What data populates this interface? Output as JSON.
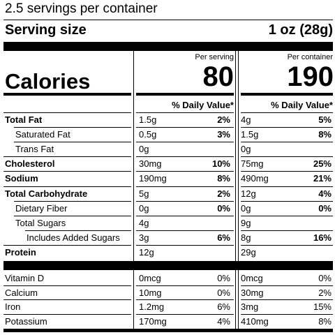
{
  "servings_per_container": "2.5 servings per container",
  "serving_size": {
    "label": "Serving size",
    "value": "1 oz (28g)"
  },
  "columns": {
    "per_serving": "Per serving",
    "per_container": "Per container"
  },
  "calories": {
    "label": "Calories",
    "per_serving": "80",
    "per_container": "190"
  },
  "daily_value_header": "% Daily Value*",
  "nutrients": [
    {
      "name": "Total Fat",
      "bold": true,
      "indent": 0,
      "serving_amount": "1.5g",
      "serving_dv": "2%",
      "container_amount": "4g",
      "container_dv": "5%"
    },
    {
      "name": "Saturated Fat",
      "bold": false,
      "indent": 1,
      "serving_amount": "0.5g",
      "serving_dv": "3%",
      "container_amount": "1.5g",
      "container_dv": "8%"
    },
    {
      "name": "Trans Fat",
      "bold": false,
      "indent": 1,
      "serving_amount": "0g",
      "serving_dv": "",
      "container_amount": "0g",
      "container_dv": ""
    },
    {
      "name": "Cholesterol",
      "bold": true,
      "indent": 0,
      "serving_amount": "30mg",
      "serving_dv": "10%",
      "container_amount": "75mg",
      "container_dv": "25%"
    },
    {
      "name": "Sodium",
      "bold": true,
      "indent": 0,
      "serving_amount": "190mg",
      "serving_dv": "8%",
      "container_amount": "490mg",
      "container_dv": "21%"
    },
    {
      "name": "Total Carbohydrate",
      "bold": true,
      "indent": 0,
      "serving_amount": "5g",
      "serving_dv": "2%",
      "container_amount": "12g",
      "container_dv": "4%"
    },
    {
      "name": "Dietary Fiber",
      "bold": false,
      "indent": 1,
      "serving_amount": "0g",
      "serving_dv": "0%",
      "container_amount": "0g",
      "container_dv": "0%"
    },
    {
      "name": "Total Sugars",
      "bold": false,
      "indent": 1,
      "serving_amount": "4g",
      "serving_dv": "",
      "container_amount": "9g",
      "container_dv": ""
    },
    {
      "name": "Includes Added Sugars",
      "bold": false,
      "indent": 2,
      "serving_amount": "3g",
      "serving_dv": "6%",
      "container_amount": "8g",
      "container_dv": "16%"
    },
    {
      "name": "Protein",
      "bold": true,
      "indent": 0,
      "serving_amount": "12g",
      "serving_dv": "",
      "container_amount": "29g",
      "container_dv": ""
    }
  ],
  "vitamins": [
    {
      "name": "Vitamin D",
      "serving_amount": "0mcg",
      "serving_dv": "0%",
      "container_amount": "0mcg",
      "container_dv": "0%"
    },
    {
      "name": "Calcium",
      "serving_amount": "10mg",
      "serving_dv": "0%",
      "container_amount": "30mg",
      "container_dv": "2%"
    },
    {
      "name": "Iron",
      "serving_amount": "1.2mg",
      "serving_dv": "6%",
      "container_amount": "3mg",
      "container_dv": "15%"
    },
    {
      "name": "Potassium",
      "serving_amount": "170mg",
      "serving_dv": "4%",
      "container_amount": "410mg",
      "container_dv": "8%"
    }
  ]
}
